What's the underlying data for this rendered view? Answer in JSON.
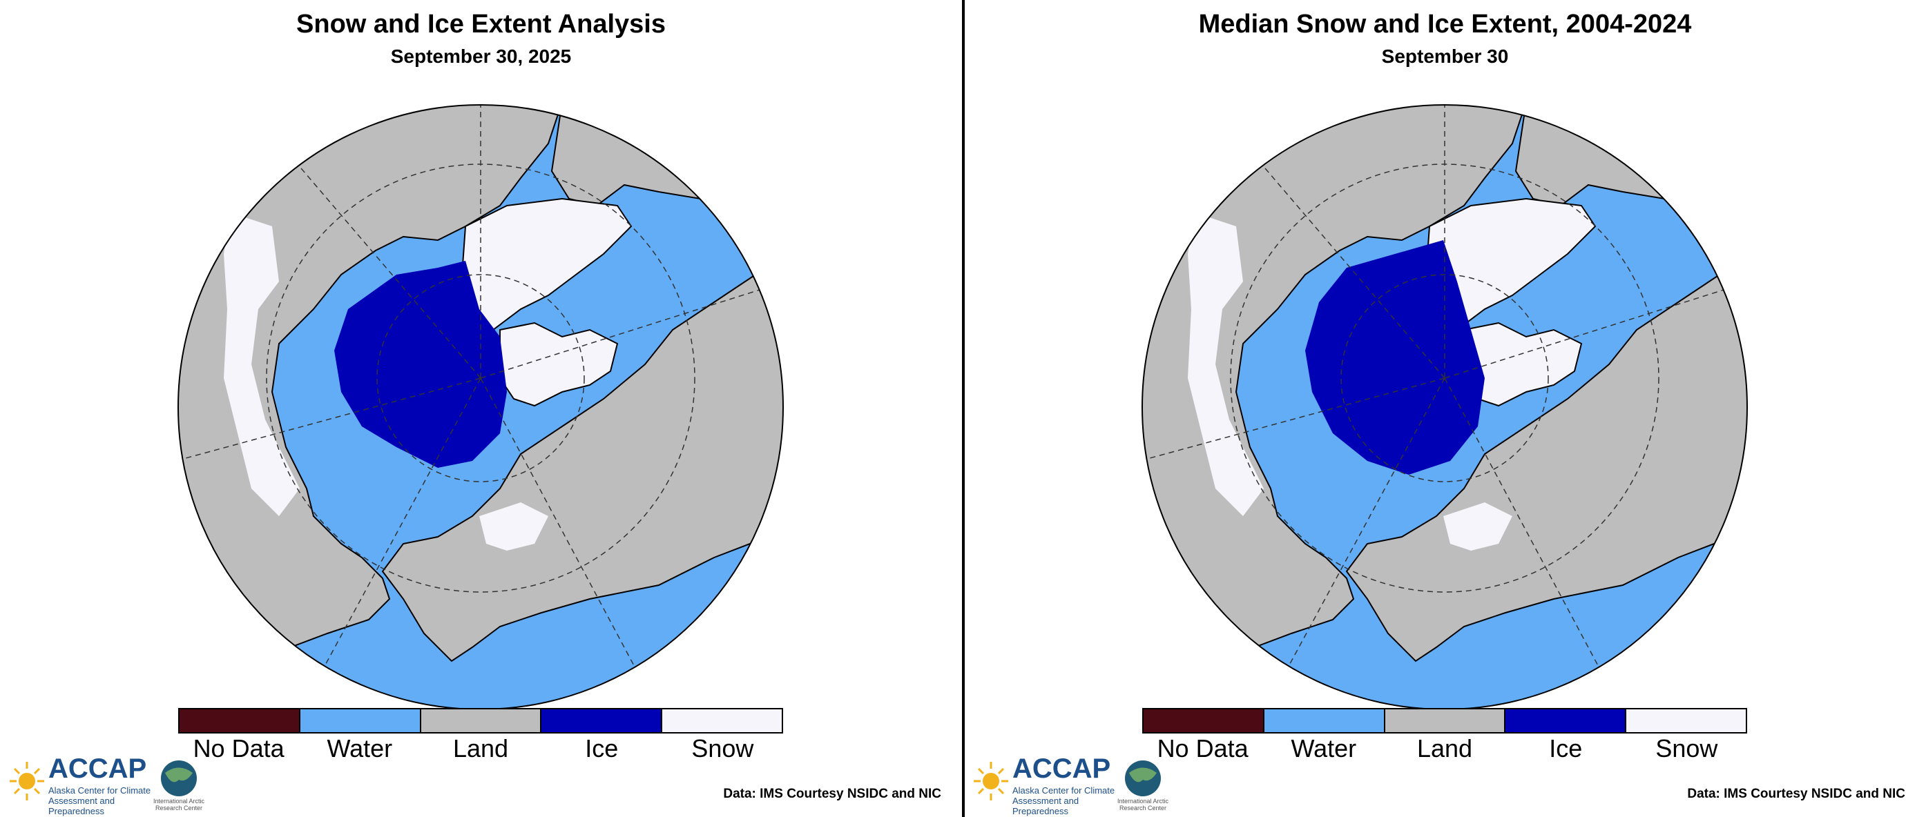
{
  "colors": {
    "no_data": "#4b0a14",
    "water": "#63adf6",
    "land": "#bdbdbd",
    "ice": "#0000b4",
    "snow": "#f5f5fb",
    "coast": "#000000"
  },
  "panels": [
    {
      "title": "Snow and Ice Extent Analysis",
      "subtitle": "September 30, 2025",
      "credit": "Data: IMS Courtesy NSIDC and NIC",
      "logo": {
        "name": "ACCAP",
        "sub": "Alaska Center for Climate Assessment and Preparedness",
        "partner": "International Arctic Research Center"
      }
    },
    {
      "title": "Median Snow and Ice Extent, 2004-2024",
      "subtitle": "September 30",
      "credit": "Data: IMS Courtesy NSIDC and NIC",
      "logo": {
        "name": "ACCAP",
        "sub": "Alaska Center for Climate Assessment and Preparedness",
        "partner": "International Arctic Research Center"
      }
    }
  ],
  "legend": [
    {
      "label": "No Data",
      "color": "#4b0a14"
    },
    {
      "label": "Water",
      "color": "#63adf6"
    },
    {
      "label": "Land",
      "color": "#bdbdbd"
    },
    {
      "label": "Ice",
      "color": "#0000b4"
    },
    {
      "label": "Snow",
      "color": "#f5f5fb"
    }
  ]
}
